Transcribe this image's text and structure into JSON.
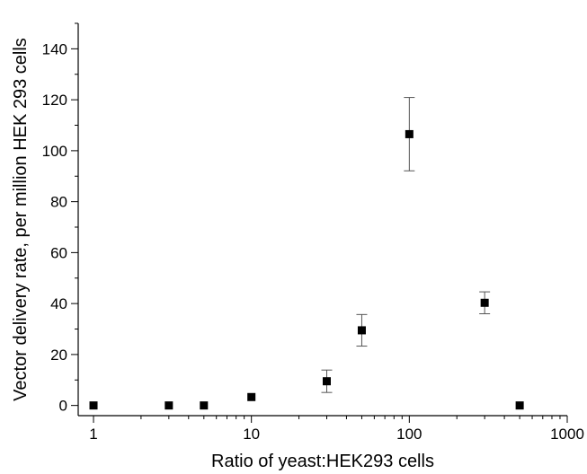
{
  "chart_data": {
    "type": "scatter",
    "title": "",
    "xlabel": "Ratio of yeast:HEK293 cells",
    "ylabel": "Vector delivery rate, per million HEK 293 cells",
    "xscale": "log",
    "xlim": [
      0.8,
      1000
    ],
    "ylim": [
      -4,
      150
    ],
    "x_ticks": [
      1,
      10,
      100,
      1000
    ],
    "x_tick_labels": [
      "1",
      "10",
      "100",
      "1000"
    ],
    "y_ticks": [
      0,
      20,
      40,
      60,
      80,
      100,
      120,
      140
    ],
    "y_tick_labels": [
      "0",
      "20",
      "40",
      "60",
      "80",
      "100",
      "120",
      "140"
    ],
    "grid": false,
    "marker": "square",
    "color": "#000000",
    "points": [
      {
        "x": 1,
        "y": 0,
        "err": 0
      },
      {
        "x": 3,
        "y": 0,
        "err": 0
      },
      {
        "x": 5,
        "y": 0,
        "err": 0
      },
      {
        "x": 10,
        "y": 3.3,
        "err": 0
      },
      {
        "x": 30,
        "y": 9.5,
        "err": 4.4
      },
      {
        "x": 50,
        "y": 29.5,
        "err": 6.2
      },
      {
        "x": 100,
        "y": 106.5,
        "err": 14.4
      },
      {
        "x": 300,
        "y": 40.3,
        "err": 4.3
      },
      {
        "x": 500,
        "y": 0,
        "err": 0
      }
    ]
  }
}
